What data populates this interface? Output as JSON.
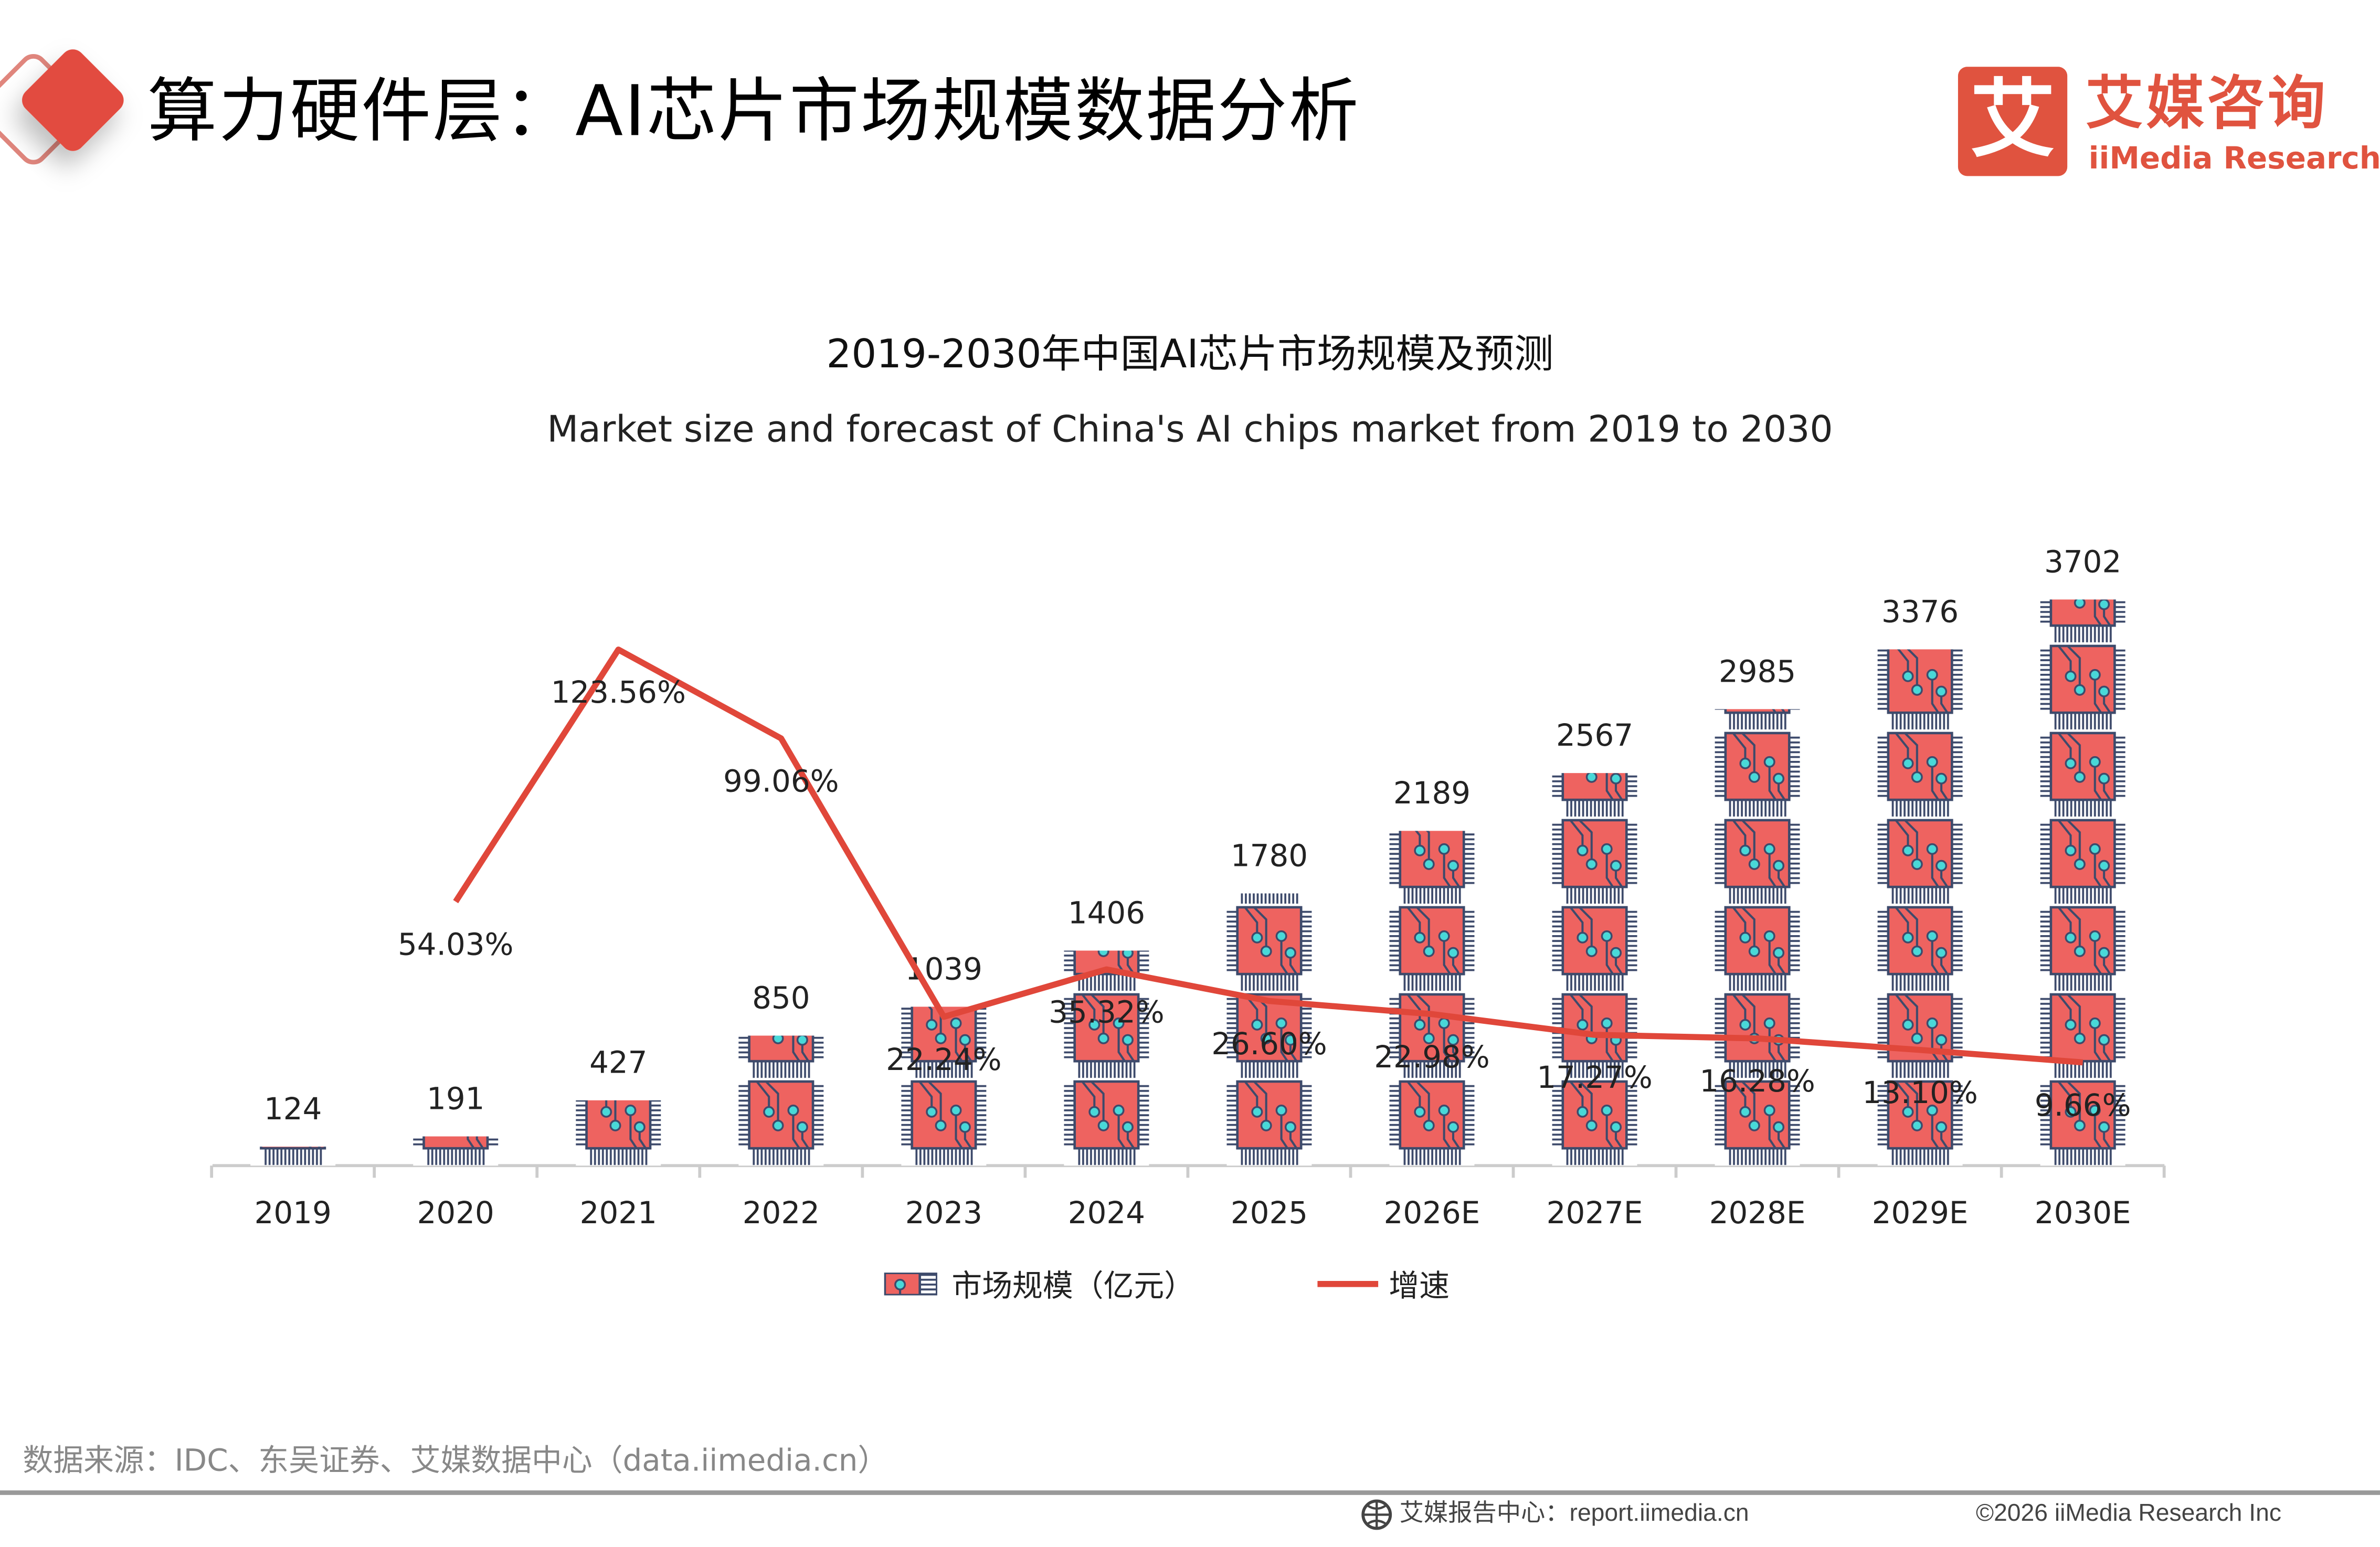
{
  "header": {
    "title": "算力硬件层：AI芯片市场规模数据分析"
  },
  "logo": {
    "icon_text": "艾",
    "name_cn": "艾媒咨询",
    "name_en": "iiMedia Research"
  },
  "colors": {
    "accent": "#E0533F",
    "bar_fill": "#EE6360",
    "chip_outline": "#3D4A6B",
    "chip_dot": "#49D8D8",
    "line": "#E0473A"
  },
  "chart_data": {
    "type": "bar",
    "title": "2019-2030年中国AI芯片市场规模及预测",
    "subtitle": "Market size and forecast of China's AI chips market from 2019 to 2030",
    "categories": [
      "2019",
      "2020",
      "2021",
      "2022",
      "2023",
      "2024",
      "2025",
      "2026E",
      "2027E",
      "2028E",
      "2029E",
      "2030E"
    ],
    "series": [
      {
        "name": "市场规模（亿元）",
        "type": "bar",
        "values": [
          124,
          191,
          427,
          850,
          1039,
          1406,
          1780,
          2189,
          2567,
          2985,
          3376,
          3702
        ],
        "labels": [
          "124",
          "191",
          "427",
          "850",
          "1039",
          "1406",
          "1780",
          "2189",
          "2567",
          "2985",
          "3376",
          "3702"
        ]
      },
      {
        "name": "增速",
        "type": "line",
        "values": [
          null,
          54.03,
          123.56,
          99.06,
          22.24,
          35.32,
          26.6,
          22.98,
          17.27,
          16.28,
          13.1,
          9.66
        ],
        "labels": [
          "",
          "54.03%",
          "123.56%",
          "99.06%",
          "22.24%",
          "35.32%",
          "26.60%",
          "22.98%",
          "17.27%",
          "16.28%",
          "13.10%",
          "9.66%"
        ]
      }
    ],
    "legend": "bottom",
    "grid": false
  },
  "legend": {
    "bar_label": "市场规模（亿元）",
    "line_label": "增速"
  },
  "footer": {
    "source": "数据来源：IDC、东吴证券、艾媒数据中心（data.iimedia.cn）",
    "report": "艾媒报告中心：report.iimedia.cn",
    "copyright": "©2026  iiMedia Research  Inc"
  }
}
